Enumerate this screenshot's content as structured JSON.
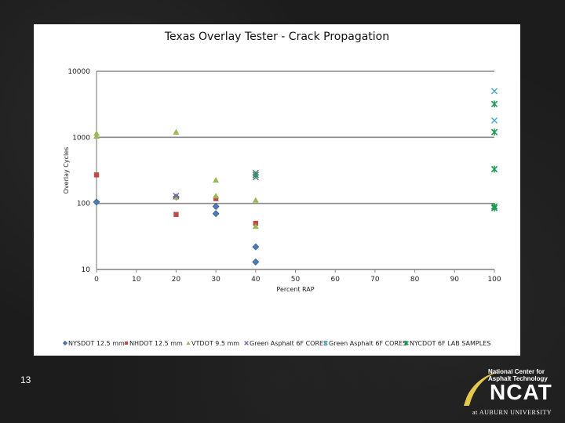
{
  "slide": {
    "number": "13"
  },
  "logo": {
    "line1": "National Center for",
    "line2": "Asphalt Technology",
    "main": "NCAT",
    "university": "at AUBURN UNIVERSITY"
  },
  "colors": {
    "NYSDOT 12.5 mm": "#4a7ebb",
    "NHDOT 12.5 mm": "#be4b48",
    "VTDOT 9.5 mm": "#98b954",
    "Green Asphalt 6F CORES": "#7d60a0",
    "Green Asphalt 6F CORES x": "#46aac5",
    "NYCDOT 6F LAB SAMPLES": "#1e9a55"
  },
  "chart_data": {
    "type": "scatter",
    "title": "Texas Overlay Tester - Crack Propagation",
    "xlabel": "Percent RAP",
    "ylabel": "Overlay Cycles",
    "xlim": [
      0,
      100
    ],
    "ylim": [
      10,
      10000
    ],
    "yscale": "log",
    "grid": "horizontal",
    "legend": "bottom",
    "xticks": [
      "0",
      "10",
      "20",
      "30",
      "40",
      "50",
      "60",
      "70",
      "80",
      "90",
      "100"
    ],
    "yticks": [
      "10",
      "100",
      "1000",
      "10000"
    ],
    "series": [
      {
        "name": "NYSDOT 12.5 mm",
        "marker": "diamond",
        "x": [
          0,
          20,
          30,
          30,
          40,
          40
        ],
        "y": [
          105,
          125,
          90,
          70,
          22,
          13
        ]
      },
      {
        "name": "NHDOT 12.5 mm",
        "marker": "square",
        "x": [
          0,
          20,
          30,
          40
        ],
        "y": [
          270,
          68,
          118,
          50
        ]
      },
      {
        "name": "VTDOT 9.5 mm",
        "marker": "triangle",
        "x": [
          0,
          0,
          20,
          20,
          30,
          30,
          40,
          40
        ],
        "y": [
          1150,
          1040,
          1200,
          125,
          225,
          130,
          112,
          45
        ]
      },
      {
        "name": "Green Asphalt 6F CORES",
        "marker": "x",
        "x": [
          20,
          40,
          40
        ],
        "y": [
          130,
          250,
          290
        ]
      },
      {
        "name": "Green Asphalt 6F CORES",
        "marker": "x",
        "x": [
          100,
          100,
          100
        ],
        "y": [
          5000,
          1800,
          90
        ]
      },
      {
        "name": "NYCDOT 6F LAB SAMPLES",
        "marker": "star",
        "x": [
          100,
          100,
          100,
          100,
          100,
          40
        ],
        "y": [
          3200,
          1200,
          330,
          85,
          90,
          270
        ]
      }
    ]
  }
}
